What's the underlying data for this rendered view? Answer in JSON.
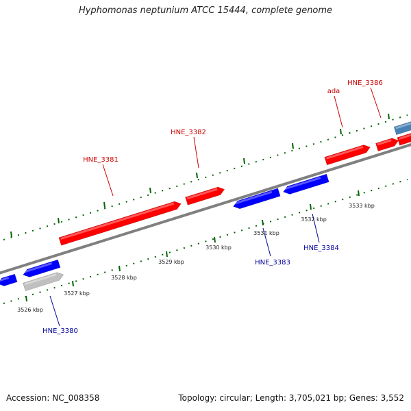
{
  "title": "Hyphomonas neptunium ATCC 15444, complete genome",
  "footer": {
    "accession": "Accession: NC_008358",
    "summary": "Topology: circular; Length: 3,705,021 bp; Genes: 3,552"
  },
  "colors": {
    "forward_gene": "#ff0000",
    "reverse_gene": "#0000ff",
    "pseudo_gene": "#c0c0c0",
    "other_gene": "#4682b4",
    "backbone": "#808080",
    "tick": "#006400",
    "forward_label": "#cc0000",
    "reverse_label": "#000099"
  },
  "gene_labels_forward": [
    "HNE_3381",
    "HNE_3382",
    "ada",
    "HNE_3386"
  ],
  "gene_labels_reverse": [
    "HNE_3380",
    "HNE_3383",
    "HNE_3384"
  ],
  "kbp_labels": [
    "3526 kbp",
    "3527 kbp",
    "3528 kbp",
    "3529 kbp",
    "3530 kbp",
    "3531 kbp",
    "3532 kbp",
    "3533 kbp"
  ]
}
